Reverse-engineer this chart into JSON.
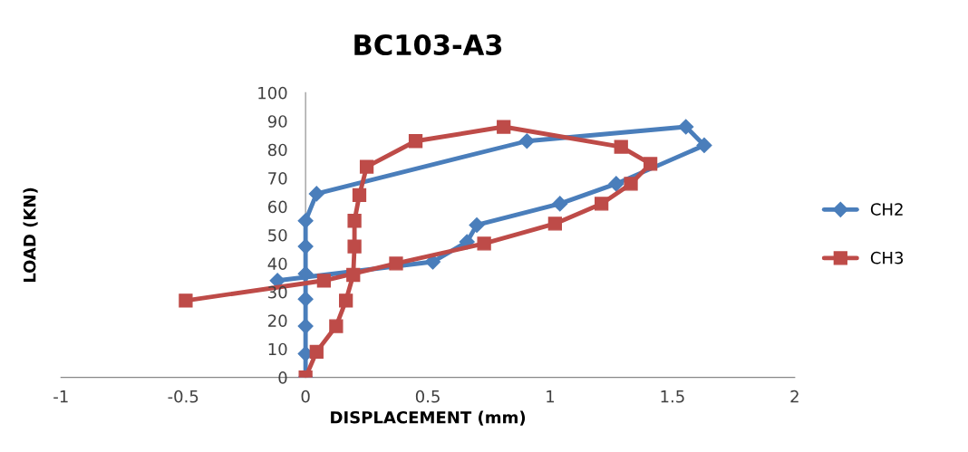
{
  "chart_data": {
    "type": "line",
    "title": "BC103-A3",
    "xlabel": "DISPLACEMENT (mm)",
    "ylabel": "LOAD (KN)",
    "xlim": [
      -1,
      2
    ],
    "xticks": [
      -1,
      -0.5,
      0,
      0.5,
      1,
      1.5,
      2
    ],
    "ylim": [
      0,
      100
    ],
    "yticks": [
      0,
      10,
      20,
      30,
      40,
      50,
      60,
      70,
      80,
      90,
      100
    ],
    "grid": false,
    "legend": "right",
    "line_style": "solid",
    "series": [
      {
        "name": "CH2",
        "color": "#4a7ebb",
        "marker": "diamond",
        "x": [
          0,
          0,
          0,
          0,
          0,
          0,
          0,
          0.045,
          0.905,
          1.555,
          1.63,
          1.27,
          1.04,
          0.7,
          0.66,
          0.52,
          -0.115
        ],
        "values": [
          0,
          8.3,
          18,
          27.5,
          36.4,
          46,
          55,
          64.5,
          83,
          88,
          81.5,
          68,
          61,
          53.5,
          47.6,
          40.6,
          34
        ]
      },
      {
        "name": "CH3",
        "color": "#be4b48",
        "marker": "square",
        "x": [
          0,
          0.045,
          0.125,
          0.165,
          0.195,
          0.2,
          0.2,
          0.22,
          0.25,
          0.45,
          0.81,
          1.29,
          1.41,
          1.33,
          1.21,
          1.02,
          0.73,
          0.37,
          0.075,
          -0.49
        ],
        "values": [
          0,
          9,
          18,
          27,
          36,
          46,
          55,
          64,
          74,
          83,
          88,
          81,
          75,
          68,
          61,
          54,
          47,
          40,
          34,
          27
        ]
      }
    ]
  }
}
